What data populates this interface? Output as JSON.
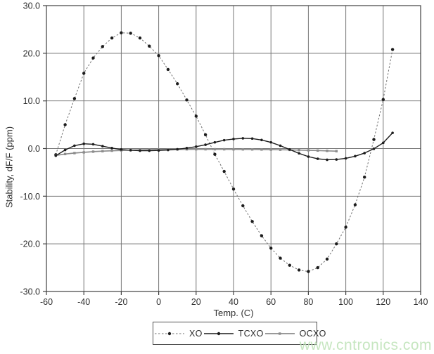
{
  "watermark": {
    "text": "www.cntronics.com",
    "color": "#c3e5bd"
  },
  "chart_data": {
    "type": "line",
    "title": "",
    "xlabel": "Temp. (C)",
    "ylabel": "Stability, dF/F (ppm)",
    "xlim": [
      -60,
      140
    ],
    "ylim": [
      -30,
      30
    ],
    "grid": true,
    "legend_position": "bottom-center",
    "axis_color": "#3f3f3f",
    "grid_color": "#757575",
    "text_color": "#2e2e2e",
    "x_ticks": [
      -60,
      -40,
      -20,
      0,
      20,
      40,
      60,
      80,
      100,
      120,
      140
    ],
    "x_tick_labels": [
      "-60",
      "-40",
      "-20",
      "0",
      "20",
      "40",
      "60",
      "80",
      "100",
      "120",
      "140"
    ],
    "y_ticks": [
      30,
      20,
      10,
      0,
      -10,
      -20,
      -30
    ],
    "y_tick_labels": [
      "30.0",
      "20.0",
      "10.0",
      "0.0",
      "-10.0",
      "-20.0",
      "-30.0"
    ],
    "series": [
      {
        "name": "XO",
        "line_style": "dashed",
        "marker": "dot",
        "color": "#6f6f6f",
        "marker_color": "#1c1c1c",
        "x": [
          -55,
          -50,
          -45,
          -40,
          -35,
          -30,
          -25,
          -20,
          -15,
          -10,
          -5,
          0,
          5,
          10,
          15,
          20,
          25,
          30,
          35,
          40,
          45,
          50,
          55,
          60,
          65,
          70,
          75,
          80,
          85,
          90,
          95,
          100,
          105,
          110,
          115,
          120,
          125
        ],
        "y": [
          -1.3,
          5.0,
          10.5,
          15.8,
          19.0,
          21.4,
          23.2,
          24.3,
          24.2,
          23.2,
          21.5,
          19.5,
          16.6,
          13.6,
          10.2,
          6.8,
          2.9,
          -1.2,
          -4.8,
          -8.5,
          -12.0,
          -15.3,
          -18.3,
          -20.9,
          -23.0,
          -24.5,
          -25.5,
          -25.8,
          -25.0,
          -23.2,
          -20.0,
          -16.5,
          -11.8,
          -6.0,
          1.9,
          10.3,
          20.8
        ]
      },
      {
        "name": "TCXO",
        "line_style": "solid",
        "marker": "dot",
        "color": "#1c1c1c",
        "marker_color": "#1c1c1c",
        "x": [
          -55,
          -50,
          -45,
          -40,
          -35,
          -30,
          -25,
          -20,
          -15,
          -10,
          -5,
          0,
          5,
          10,
          15,
          20,
          25,
          30,
          35,
          40,
          45,
          50,
          55,
          60,
          65,
          70,
          75,
          80,
          85,
          90,
          95,
          100,
          105,
          110,
          115,
          120,
          125
        ],
        "y": [
          -1.5,
          -0.3,
          0.6,
          1.0,
          0.9,
          0.5,
          0.1,
          -0.2,
          -0.35,
          -0.45,
          -0.45,
          -0.4,
          -0.3,
          -0.15,
          0.1,
          0.4,
          0.8,
          1.3,
          1.75,
          2.0,
          2.15,
          2.1,
          1.8,
          1.3,
          0.6,
          -0.2,
          -1.0,
          -1.7,
          -2.15,
          -2.35,
          -2.3,
          -2.05,
          -1.6,
          -0.95,
          -0.05,
          1.2,
          3.3
        ]
      },
      {
        "name": "OCXO",
        "line_style": "solid",
        "marker": "square",
        "color": "#8c8c8c",
        "marker_color": "#8c8c8c",
        "x": [
          -55,
          -50,
          -45,
          -40,
          -35,
          -30,
          -25,
          -20,
          -15,
          -10,
          -5,
          0,
          5,
          10,
          15,
          20,
          25,
          30,
          35,
          40,
          45,
          50,
          55,
          60,
          65,
          70,
          75,
          80,
          85,
          90,
          95
        ],
        "y": [
          -1.45,
          -1.15,
          -0.95,
          -0.8,
          -0.65,
          -0.55,
          -0.45,
          -0.38,
          -0.32,
          -0.27,
          -0.23,
          -0.2,
          -0.18,
          -0.17,
          -0.16,
          -0.15,
          -0.15,
          -0.15,
          -0.15,
          -0.16,
          -0.17,
          -0.18,
          -0.2,
          -0.22,
          -0.25,
          -0.28,
          -0.32,
          -0.37,
          -0.42,
          -0.48,
          -0.55
        ]
      }
    ]
  }
}
